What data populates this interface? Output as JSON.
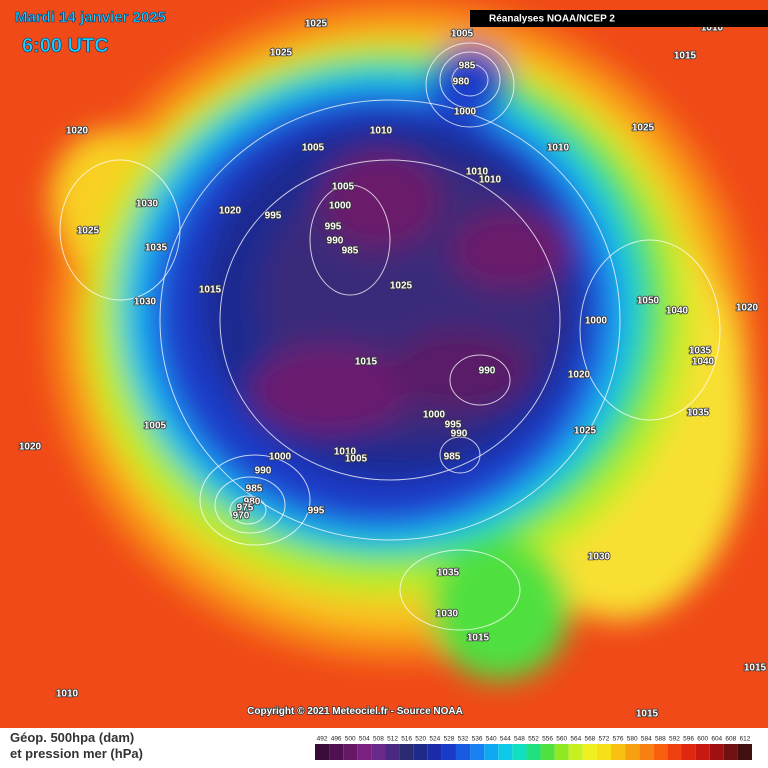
{
  "header": {
    "date": "Mardi 14 janvier 2025",
    "time": "6:00 UTC",
    "source": "Réanalyses NOAA/NCEP 2"
  },
  "footer": {
    "copyright": "Copyright © 2021 Meteociel.fr - Source NOAA",
    "legend_line1": "Géop. 500hpa (dam)",
    "legend_line2": "et pression mer (hPa)"
  },
  "pressure_labels": [
    "1025",
    "1005",
    "1025",
    "985",
    "980",
    "1000",
    "1020",
    "1010",
    "1005",
    "1010",
    "1025",
    "1015",
    "1010",
    "1030",
    "1020",
    "995",
    "1005",
    "1000",
    "995",
    "990",
    "985",
    "1010",
    "1010",
    "1025",
    "1035",
    "1015",
    "1025",
    "1030",
    "1050",
    "1040",
    "1020",
    "1000",
    "1015",
    "990",
    "1035",
    "1040",
    "1020",
    "1000",
    "995",
    "990",
    "1035",
    "1025",
    "1005",
    "1020",
    "1000",
    "1010",
    "1005",
    "985",
    "990",
    "985",
    "980",
    "975",
    "970",
    "995",
    "1030",
    "1035",
    "1030",
    "1015",
    "1010",
    "1015",
    "1015"
  ],
  "legend": {
    "ticks": [
      "492",
      "496",
      "500",
      "504",
      "508",
      "512",
      "516",
      "520",
      "524",
      "528",
      "532",
      "536",
      "540",
      "544",
      "548",
      "552",
      "556",
      "560",
      "564",
      "568",
      "572",
      "576",
      "580",
      "584",
      "588",
      "592",
      "596",
      "600",
      "604",
      "608",
      "612"
    ],
    "colors": [
      "#3a0a3a",
      "#4e1050",
      "#661866",
      "#7a2080",
      "#6a2a8a",
      "#4a2a80",
      "#2a2a70",
      "#1e2a8a",
      "#1a2aa8",
      "#1a3ac8",
      "#1a5ae0",
      "#1a80f0",
      "#10a8f0",
      "#10c8e8",
      "#10e0c0",
      "#20e080",
      "#50e040",
      "#90e820",
      "#c8f020",
      "#f0f020",
      "#f8e018",
      "#f8c010",
      "#f8a010",
      "#f88010",
      "#f86010",
      "#f04010",
      "#e02810",
      "#c81810",
      "#a01010",
      "#701010",
      "#401010"
    ]
  }
}
